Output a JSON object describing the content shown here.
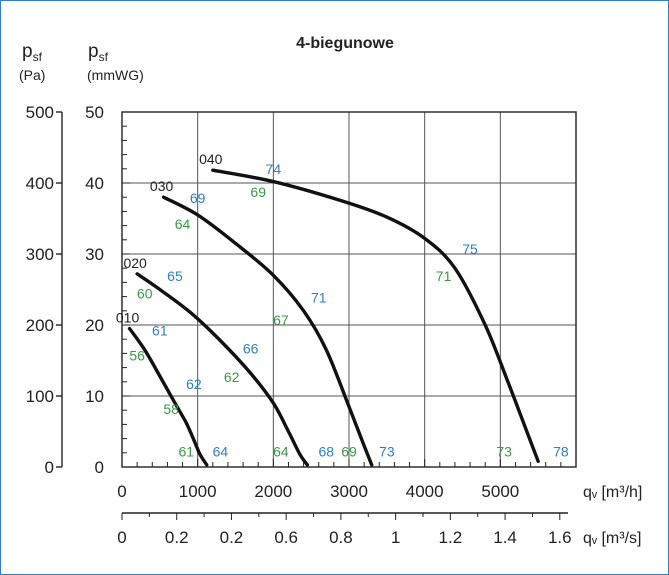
{
  "chart_data": {
    "type": "line",
    "title": "4-biegunowe",
    "y_left": {
      "label_main": "p",
      "label_sub": "sf",
      "unit": "(Pa)",
      "ticks": [
        "0",
        "100",
        "200",
        "300",
        "400",
        "500"
      ],
      "ylim": [
        0,
        500
      ]
    },
    "y_right": {
      "label_main": "p",
      "label_sub": "sf",
      "unit": "(mmWG)",
      "ticks": [
        "0",
        "10",
        "20",
        "30",
        "40",
        "50"
      ],
      "ylim": [
        0,
        50
      ]
    },
    "x_axis_1": {
      "label": "qᵥ [m³/h]",
      "ticks": [
        "0",
        "1000",
        "2000",
        "3000",
        "4000",
        "5000"
      ],
      "xlim": [
        0,
        6000
      ]
    },
    "x_axis_2": {
      "label": "qᵥ [m³/s]",
      "ticks": [
        "0",
        "0.2",
        "0.2",
        "0.6",
        "0.8",
        "1",
        "1.2",
        "1.4",
        "1.6"
      ]
    },
    "grid": true,
    "series": [
      {
        "name": "010",
        "points": [
          [
            100,
            195
          ],
          [
            300,
            165
          ],
          [
            500,
            128
          ],
          [
            700,
            90
          ],
          [
            850,
            62
          ],
          [
            950,
            38
          ],
          [
            1030,
            18
          ],
          [
            1120,
            3
          ]
        ],
        "labels": [
          {
            "text": "61",
            "color": "blue",
            "x": 500,
            "y": 185
          },
          {
            "text": "56",
            "color": "green",
            "x": 200,
            "y": 150
          },
          {
            "text": "62",
            "color": "blue",
            "x": 950,
            "y": 110
          },
          {
            "text": "58",
            "color": "green",
            "x": 650,
            "y": 75
          },
          {
            "text": "61",
            "color": "green",
            "x": 850,
            "y": 15
          },
          {
            "text": "64",
            "color": "blue",
            "x": 1300,
            "y": 15
          }
        ]
      },
      {
        "name": "020",
        "points": [
          [
            200,
            272
          ],
          [
            500,
            250
          ],
          [
            900,
            218
          ],
          [
            1300,
            178
          ],
          [
            1700,
            132
          ],
          [
            2000,
            90
          ],
          [
            2200,
            50
          ],
          [
            2350,
            18
          ],
          [
            2450,
            3
          ]
        ],
        "labels": [
          {
            "text": "65",
            "color": "blue",
            "x": 700,
            "y": 262
          },
          {
            "text": "60",
            "color": "green",
            "x": 300,
            "y": 237
          },
          {
            "text": "66",
            "color": "blue",
            "x": 1700,
            "y": 160
          },
          {
            "text": "62",
            "color": "green",
            "x": 1450,
            "y": 120
          },
          {
            "text": "64",
            "color": "green",
            "x": 2100,
            "y": 15
          },
          {
            "text": "68",
            "color": "blue",
            "x": 2700,
            "y": 15
          }
        ]
      },
      {
        "name": "030",
        "points": [
          [
            550,
            380
          ],
          [
            1000,
            355
          ],
          [
            1500,
            315
          ],
          [
            2000,
            270
          ],
          [
            2400,
            220
          ],
          [
            2700,
            165
          ],
          [
            3000,
            85
          ],
          [
            3200,
            30
          ],
          [
            3300,
            3
          ]
        ],
        "labels": [
          {
            "text": "69",
            "color": "blue",
            "x": 1000,
            "y": 372
          },
          {
            "text": "64",
            "color": "green",
            "x": 800,
            "y": 335
          },
          {
            "text": "71",
            "color": "blue",
            "x": 2600,
            "y": 232
          },
          {
            "text": "67",
            "color": "green",
            "x": 2100,
            "y": 200
          },
          {
            "text": "69",
            "color": "green",
            "x": 3000,
            "y": 15
          },
          {
            "text": "73",
            "color": "blue",
            "x": 3500,
            "y": 15
          }
        ]
      },
      {
        "name": "040",
        "points": [
          [
            1200,
            418
          ],
          [
            2000,
            402
          ],
          [
            2900,
            375
          ],
          [
            3500,
            352
          ],
          [
            4000,
            322
          ],
          [
            4400,
            280
          ],
          [
            4800,
            200
          ],
          [
            5100,
            120
          ],
          [
            5350,
            50
          ],
          [
            5500,
            8
          ]
        ],
        "labels": [
          {
            "text": "74",
            "color": "blue",
            "x": 2000,
            "y": 413
          },
          {
            "text": "69",
            "color": "green",
            "x": 1800,
            "y": 380
          },
          {
            "text": "75",
            "color": "blue",
            "x": 4600,
            "y": 300
          },
          {
            "text": "71",
            "color": "green",
            "x": 4250,
            "y": 262
          },
          {
            "text": "73",
            "color": "green",
            "x": 5050,
            "y": 15
          },
          {
            "text": "78",
            "color": "blue",
            "x": 5800,
            "y": 15
          }
        ]
      }
    ]
  }
}
